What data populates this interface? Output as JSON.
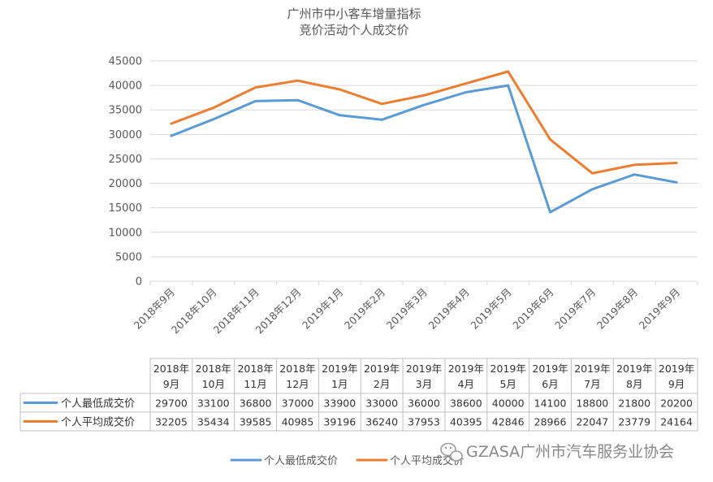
{
  "chart_data": {
    "type": "line",
    "title": [
      "广州市中小客车增量指标",
      "竞价活动个人成交价"
    ],
    "categories": [
      "2018年9月",
      "2018年10月",
      "2018年11月",
      "2018年12月",
      "2019年1月",
      "2019年2月",
      "2019年3月",
      "2019年4月",
      "2019年5月",
      "2019年6月",
      "2019年7月",
      "2019年8月",
      "2019年9月"
    ],
    "table_headers": [
      [
        "2018年",
        "9月"
      ],
      [
        "2018年",
        "10月"
      ],
      [
        "2018年",
        "11月"
      ],
      [
        "2018年",
        "12月"
      ],
      [
        "2019年",
        "1月"
      ],
      [
        "2019年",
        "2月"
      ],
      [
        "2019年",
        "3月"
      ],
      [
        "2019年",
        "4月"
      ],
      [
        "2019年",
        "5月"
      ],
      [
        "2019年",
        "6月"
      ],
      [
        "2019年",
        "7月"
      ],
      [
        "2019年",
        "8月"
      ],
      [
        "2019年",
        "9月"
      ]
    ],
    "series": [
      {
        "name": "个人最低成交价",
        "color": "#5b9bd5",
        "values": [
          29700,
          33100,
          36800,
          37000,
          33900,
          33000,
          36000,
          38600,
          40000,
          14100,
          18800,
          21800,
          20200
        ]
      },
      {
        "name": "个人平均成交价",
        "color": "#ed7d31",
        "values": [
          32205,
          35434,
          39585,
          40985,
          39196,
          36240,
          37953,
          40395,
          42846,
          28966,
          22047,
          23779,
          24164
        ]
      }
    ],
    "ylim": [
      0,
      45000
    ],
    "yticks": [
      0,
      5000,
      10000,
      15000,
      20000,
      25000,
      30000,
      35000,
      40000,
      45000
    ],
    "grid": true,
    "legend_position": "bottom"
  },
  "watermark": {
    "text": "GZASA广州市汽车服务业协会",
    "icon": "wechat-icon"
  }
}
